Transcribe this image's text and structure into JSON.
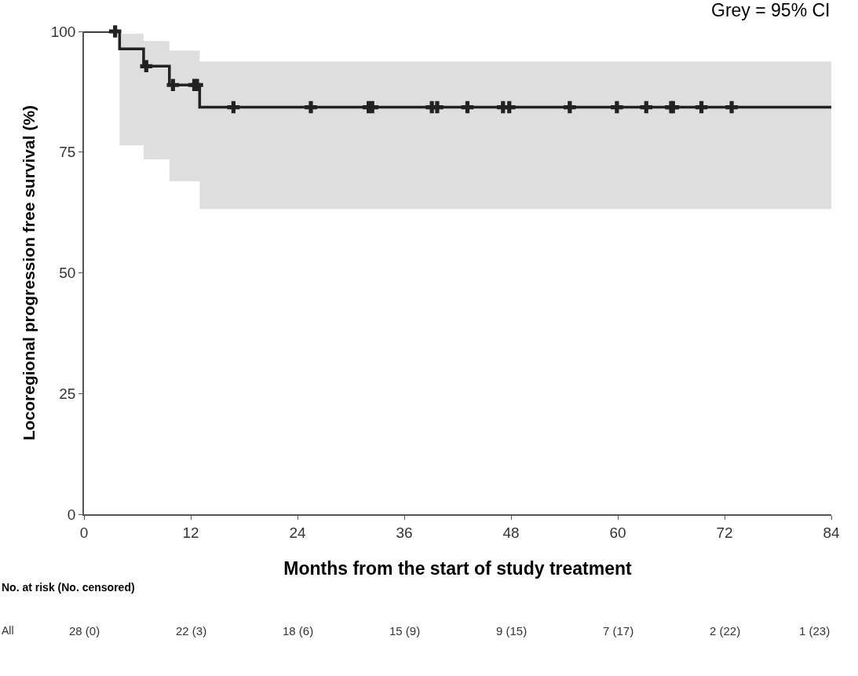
{
  "chart_data": {
    "type": "step",
    "xlabel": "Months from the start of study treatment",
    "ylabel": "Locoregional progression free survival (%)",
    "xlim": [
      0,
      84
    ],
    "xticks": [
      0,
      12,
      24,
      36,
      48,
      60,
      72,
      84
    ],
    "ylim": [
      0,
      100
    ],
    "yticks": [
      0,
      25,
      50,
      75,
      100
    ],
    "grid": false,
    "series": [
      {
        "type": "step",
        "color": "#222222",
        "x": [
          0,
          4,
          6.7,
          9.6,
          13,
          84
        ],
        "values": [
          100,
          96.4,
          92.8,
          88.9,
          84.3,
          84.3
        ],
        "lower": [
          null,
          76.4,
          73.5,
          69,
          63.2,
          63.2
        ],
        "upper": [
          null,
          99.5,
          98,
          96,
          93.8,
          93.8
        ]
      },
      {
        "type": "scatter",
        "marker": "cross",
        "color": "#222222",
        "x": [
          3.5,
          7,
          10,
          12.4,
          12.7,
          16.8,
          25.5,
          32,
          32.4,
          39.1,
          39.7,
          43.1,
          47.1,
          47.8,
          54.6,
          59.9,
          63.2,
          66,
          66.2,
          69.4,
          72.8
        ],
        "values": [
          100,
          92.8,
          88.9,
          88.9,
          88.9,
          84.3,
          84.3,
          84.3,
          84.3,
          84.3,
          84.3,
          84.3,
          84.3,
          84.3,
          84.3,
          84.3,
          84.3,
          84.3,
          84.3,
          84.3,
          84.3
        ]
      }
    ],
    "annotations": [
      "Grey = 95% CI",
      "No. at risk (No. censored)",
      "All",
      "28 (0)",
      "22 (3)",
      "18 (6)",
      "15 (9)",
      "9 (15)",
      "7 (17)",
      "2 (22)",
      "1 (23)"
    ]
  }
}
